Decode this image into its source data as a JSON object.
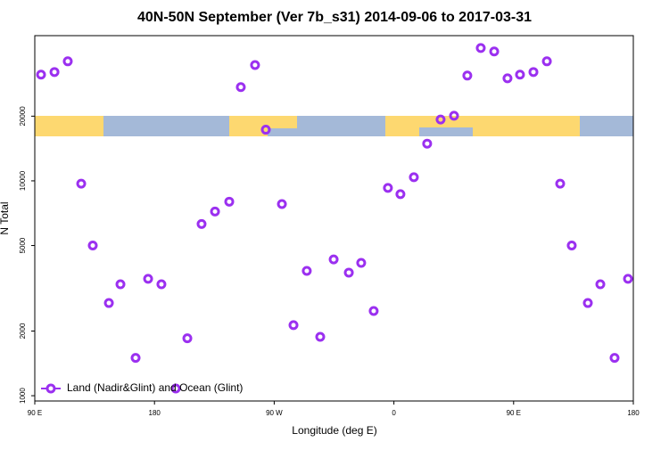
{
  "chart_data": {
    "type": "scatter",
    "title": "40N-50N September (Ver 7b_s31)   2014-09-06 to 2017-03-31",
    "x_label": "Longitude (deg E)",
    "y_label": "N Total",
    "log_y": true,
    "legend_position": "bottom-left",
    "xlim": [
      90,
      540
    ],
    "ylim": [
      945,
      47400
    ],
    "xticks": [
      {
        "value": 90,
        "label": "90 E"
      },
      {
        "value": 180,
        "label": "180"
      },
      {
        "value": 270,
        "label": "90 W"
      },
      {
        "value": 360,
        "label": "0"
      },
      {
        "value": 450,
        "label": "90 E"
      },
      {
        "value": 540,
        "label": "180"
      }
    ],
    "yticks": [
      1000,
      2000,
      5000,
      10000,
      20000
    ],
    "x": [
      94.7,
      104.8,
      114.8,
      124.9,
      133.6,
      145.7,
      154.4,
      165.8,
      175.2,
      185.2,
      196,
      204.7,
      215.4,
      225.5,
      236.2,
      244.9,
      255.6,
      263.7,
      275.8,
      284.5,
      294.5,
      304.6,
      314.7,
      326.1,
      335.4,
      344.8,
      355.5,
      364.9,
      375,
      385,
      395.1,
      405.2,
      415.2,
      425.3,
      435.4,
      445.4,
      454.8,
      464.9,
      475,
      485,
      493.7,
      505.8,
      515.2,
      525.9,
      536
    ],
    "series": [
      {
        "name": "Land (Nadir&Glint) and Ocean (Glint)",
        "color": "#9b30f0",
        "values": [
          31200,
          32100,
          36000,
          9700,
          5000,
          2700,
          3300,
          1500,
          3500,
          3300,
          1080,
          1850,
          6300,
          7200,
          8000,
          27300,
          34600,
          17300,
          7800,
          2130,
          3810,
          1880,
          4310,
          3740,
          4150,
          2480,
          9270,
          8670,
          10400,
          14900,
          19300,
          20100,
          30900,
          41500,
          40000,
          30000,
          31200,
          32100,
          36000,
          9700,
          5000,
          2700,
          3300,
          1500,
          3500
        ]
      }
    ]
  }
}
